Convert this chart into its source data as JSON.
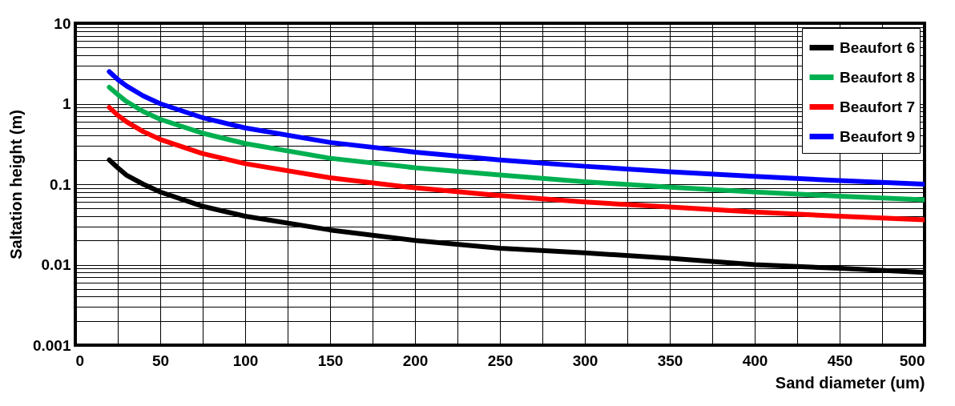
{
  "chart_data": {
    "type": "line",
    "xlabel": "Sand diameter (um)",
    "ylabel": "Saltation height (m)",
    "log": "y",
    "grid": true,
    "legend": "top right",
    "x": [
      20,
      25,
      30,
      40,
      50,
      75,
      100,
      150,
      200,
      250,
      300,
      350,
      400,
      450,
      500
    ],
    "series": [
      {
        "name": "Beaufort 6",
        "color": "#000000",
        "values": [
          0.2,
          0.16,
          0.13,
          0.1,
          0.08,
          0.053,
          0.04,
          0.027,
          0.02,
          0.016,
          0.014,
          0.012,
          0.01,
          0.009,
          0.008
        ]
      },
      {
        "name": "Beaufort 8",
        "color": "#00b050",
        "values": [
          1.6,
          1.3,
          1.07,
          0.8,
          0.64,
          0.43,
          0.32,
          0.21,
          0.16,
          0.13,
          0.107,
          0.092,
          0.08,
          0.071,
          0.064
        ]
      },
      {
        "name": "Beaufort 7",
        "color": "#ff0000",
        "values": [
          0.9,
          0.72,
          0.6,
          0.45,
          0.36,
          0.24,
          0.18,
          0.12,
          0.09,
          0.072,
          0.06,
          0.052,
          0.045,
          0.04,
          0.036
        ]
      },
      {
        "name": "Beaufort 9",
        "color": "#0000ff",
        "values": [
          2.5,
          2.0,
          1.67,
          1.25,
          1.0,
          0.67,
          0.5,
          0.33,
          0.25,
          0.2,
          0.167,
          0.143,
          0.125,
          0.111,
          0.1
        ]
      }
    ],
    "xlim": [
      0,
      500
    ],
    "xticks": [
      0,
      {
        "value": 25,
        "label": null
      },
      50,
      {
        "value": 75,
        "label": null
      },
      100,
      {
        "value": 125,
        "label": null
      },
      150,
      {
        "value": 175,
        "label": null
      },
      200,
      {
        "value": 225,
        "label": null
      },
      250,
      {
        "value": 275,
        "label": null
      },
      300,
      {
        "value": 325,
        "label": null
      },
      350,
      {
        "value": 375,
        "label": null
      },
      400,
      {
        "value": 425,
        "label": null
      },
      450,
      {
        "value": 475,
        "label": null
      },
      500
    ],
    "ylim": [
      0.001,
      10
    ],
    "yticks": [
      0.001,
      {
        "value": 0.002,
        "label": null
      },
      {
        "value": 0.003,
        "label": null
      },
      {
        "value": 0.004,
        "label": null
      },
      {
        "value": 0.005,
        "label": null
      },
      {
        "value": 0.006,
        "label": null
      },
      {
        "value": 0.007,
        "label": null
      },
      {
        "value": 0.008,
        "label": null
      },
      {
        "value": 0.009,
        "label": null
      },
      0.01,
      {
        "value": 0.02,
        "label": null
      },
      {
        "value": 0.03,
        "label": null
      },
      {
        "value": 0.04,
        "label": null
      },
      {
        "value": 0.05,
        "label": null
      },
      {
        "value": 0.06,
        "label": null
      },
      {
        "value": 0.07,
        "label": null
      },
      {
        "value": 0.08,
        "label": null
      },
      {
        "value": 0.09,
        "label": null
      },
      0.1,
      {
        "value": 0.2,
        "label": null
      },
      {
        "value": 0.3,
        "label": null
      },
      {
        "value": 0.4,
        "label": null
      },
      {
        "value": 0.5,
        "label": null
      },
      {
        "value": 0.6,
        "label": null
      },
      {
        "value": 0.7,
        "label": null
      },
      {
        "value": 0.8,
        "label": null
      },
      {
        "value": 0.9,
        "label": null
      },
      1,
      {
        "value": 2,
        "label": null
      },
      {
        "value": 3,
        "label": null
      },
      {
        "value": 4,
        "label": null
      },
      {
        "value": 5,
        "label": null
      },
      {
        "value": 6,
        "label": null
      },
      {
        "value": 7,
        "label": null
      },
      {
        "value": 8,
        "label": null
      },
      {
        "value": 9,
        "label": null
      },
      10
    ]
  }
}
